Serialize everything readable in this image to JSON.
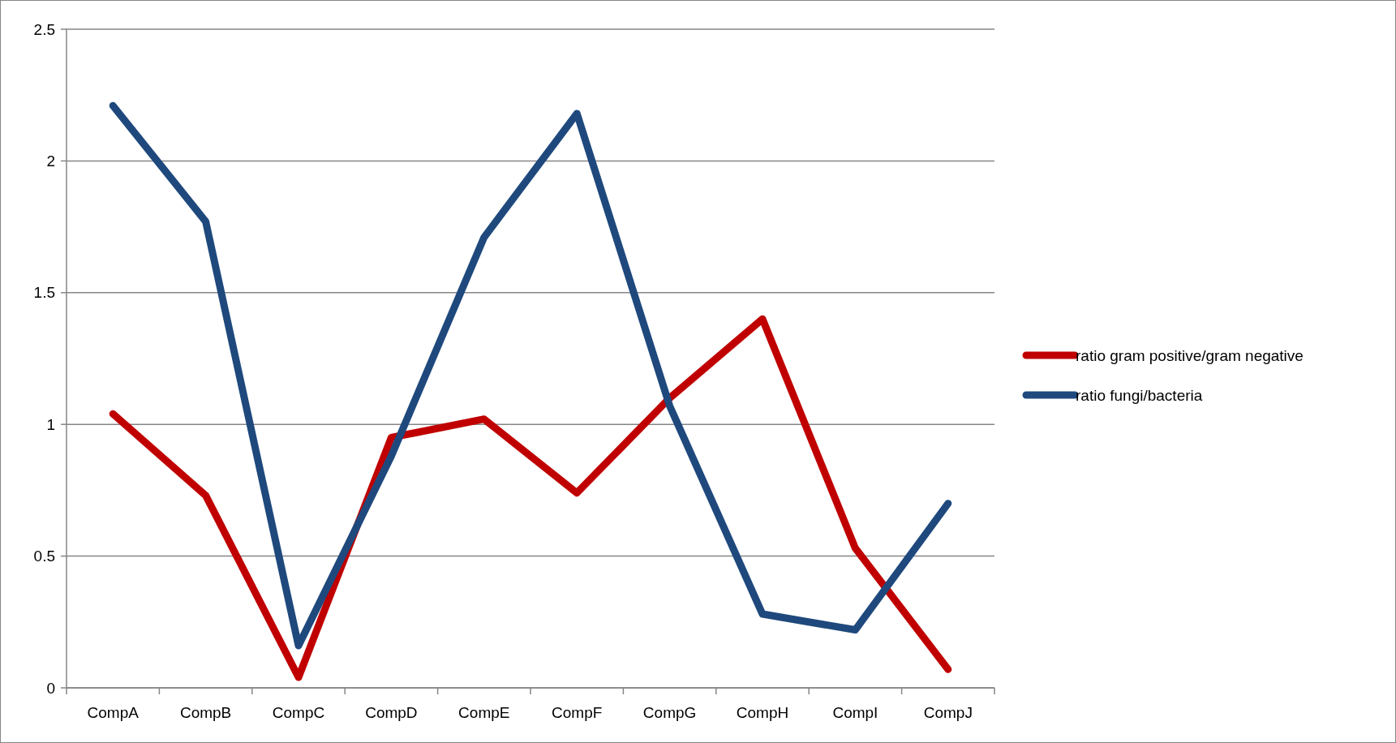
{
  "chart_data": {
    "type": "line",
    "categories": [
      "CompA",
      "CompB",
      "CompC",
      "CompD",
      "CompE",
      "CompF",
      "CompG",
      "CompH",
      "CompI",
      "CompJ"
    ],
    "series": [
      {
        "name": "ratio gram positive/gram negative",
        "color": "#c00000",
        "values": [
          1.04,
          0.73,
          0.04,
          0.95,
          1.02,
          0.74,
          1.1,
          1.4,
          0.53,
          0.07
        ]
      },
      {
        "name": "ratio fungi/bacteria",
        "color": "#1f497d",
        "values": [
          2.21,
          1.77,
          0.16,
          0.88,
          1.71,
          2.18,
          1.07,
          0.28,
          0.22,
          0.7
        ]
      }
    ],
    "ylim": [
      0,
      2.5
    ],
    "yticks": [
      0,
      0.5,
      1,
      1.5,
      2,
      2.5
    ],
    "grid": "y",
    "legend": "right",
    "marker": "none",
    "line_style": "solid"
  }
}
